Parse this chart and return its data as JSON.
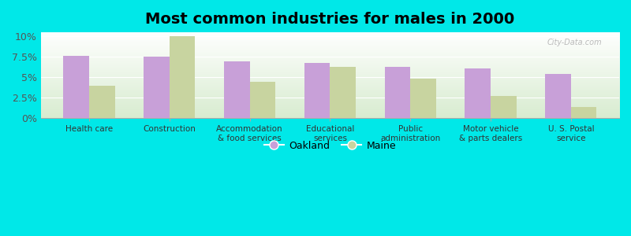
{
  "title": "Most common industries for males in 2000",
  "categories": [
    "Health care",
    "Construction",
    "Accommodation\n& food services",
    "Educational\nservices",
    "Public\nadministration",
    "Motor vehicle\n& parts dealers",
    "U. S. Postal\nservice"
  ],
  "oakland_values": [
    7.6,
    7.5,
    7.0,
    6.8,
    6.3,
    6.1,
    5.4
  ],
  "maine_values": [
    4.0,
    10.0,
    4.5,
    6.3,
    4.8,
    2.7,
    1.4
  ],
  "oakland_color": "#c8a0d8",
  "maine_color": "#c8d4a0",
  "background_color": "#00e8e8",
  "plot_bg_top": "#ffffff",
  "plot_bg_bottom": "#d8ecd0",
  "yticks": [
    0,
    2.5,
    5.0,
    7.5,
    10.0
  ],
  "ytick_labels": [
    "0%",
    "2.5%",
    "5%",
    "7.5%",
    "10%"
  ],
  "ylim": [
    0,
    10.5
  ],
  "bar_width": 0.32,
  "legend_labels": [
    "Oakland",
    "Maine"
  ],
  "title_fontsize": 14
}
